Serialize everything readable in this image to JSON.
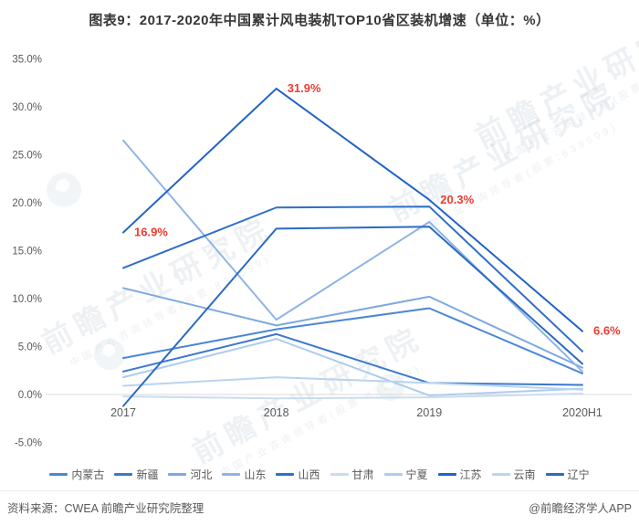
{
  "title": "图表9：2017-2020年中国累计风电装机TOP10省区装机增速（单位：%）",
  "footer": {
    "source": "资料来源：CWEA  前瞻产业研究院整理",
    "credit": "@前瞻经济学人APP"
  },
  "watermark": {
    "brand": "前瞻产业研究院",
    "tagline": "中国产业咨询领导者(股票:839599)"
  },
  "chart_data": {
    "type": "line",
    "title": "图表9：2017-2020年中国累计风电装机TOP10省区装机增速（单位：%）",
    "unit": "%",
    "categories": [
      "2017",
      "2018",
      "2019",
      "2020H1"
    ],
    "y_ticks": [
      "35.0%",
      "30.0%",
      "25.0%",
      "20.0%",
      "15.0%",
      "10.0%",
      "5.0%",
      "0.0%",
      "-5.0%"
    ],
    "ylim": [
      -5,
      35
    ],
    "grid": "zero-line-only",
    "legend_position": "bottom",
    "series": [
      {
        "name": "内蒙古",
        "color": "#4a86d8",
        "values": [
          3.8,
          6.8,
          9.0,
          2.2
        ]
      },
      {
        "name": "新疆",
        "color": "#3a78ce",
        "values": [
          2.4,
          6.3,
          1.2,
          1.0
        ]
      },
      {
        "name": "河北",
        "color": "#7ca9e0",
        "values": [
          11.1,
          7.2,
          10.2,
          2.8
        ]
      },
      {
        "name": "山东",
        "color": "#8fb4e4",
        "values": [
          26.5,
          7.8,
          18.0,
          2.4
        ]
      },
      {
        "name": "山西",
        "color": "#2f6fc7",
        "values": [
          13.2,
          19.5,
          19.6,
          4.5
        ]
      },
      {
        "name": "甘肃",
        "color": "#c9dcf2",
        "values": [
          -0.2,
          -0.4,
          -0.3,
          0.1
        ]
      },
      {
        "name": "宁夏",
        "color": "#aecced",
        "values": [
          1.8,
          5.8,
          -0.1,
          0.6
        ]
      },
      {
        "name": "江苏",
        "color": "#2163c5",
        "values": [
          16.9,
          31.9,
          20.3,
          6.6
        ]
      },
      {
        "name": "云南",
        "color": "#bad3ef",
        "values": [
          0.9,
          1.8,
          1.2,
          0.5
        ]
      },
      {
        "name": "辽宁",
        "color": "#2a6ac4",
        "values": [
          -1.2,
          17.3,
          17.5,
          3.2
        ]
      }
    ],
    "annotations": [
      {
        "label": "16.9%",
        "series": "江苏",
        "point_index": 0
      },
      {
        "label": "31.9%",
        "series": "江苏",
        "point_index": 1
      },
      {
        "label": "20.3%",
        "series": "江苏",
        "point_index": 2
      },
      {
        "label": "6.6%",
        "series": "江苏",
        "point_index": 3
      }
    ],
    "annotation_color": "#ef3b2f"
  }
}
